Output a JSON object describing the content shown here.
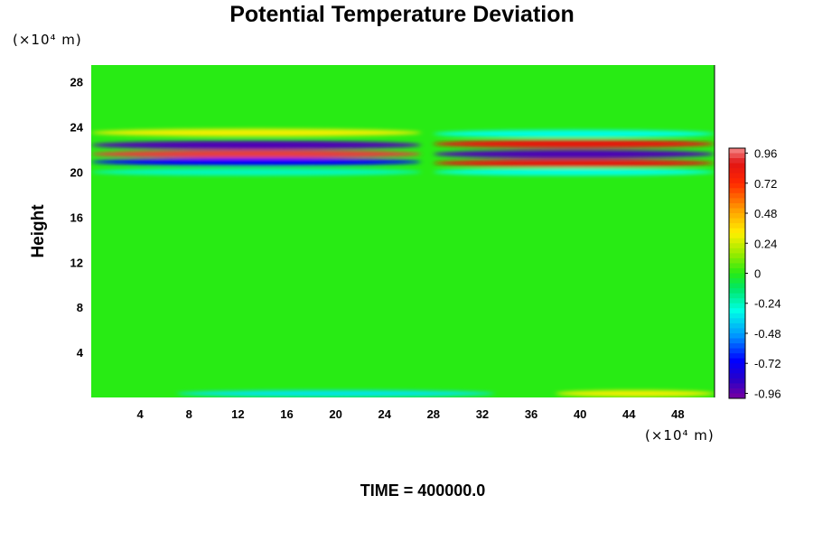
{
  "chart_data": {
    "type": "heatmap",
    "title": "Potential Temperature Deviation",
    "ylabel": "Height",
    "x_unit_label": "(×10⁴ m)",
    "y_unit_label": "(×10⁴ m)",
    "time_label": "TIME = 400000.0",
    "xlim": [
      0,
      51
    ],
    "ylim": [
      0,
      29.5
    ],
    "x_ticks": [
      4,
      8,
      12,
      16,
      20,
      24,
      28,
      32,
      36,
      40,
      44,
      48
    ],
    "y_ticks": [
      4,
      8,
      12,
      16,
      20,
      24,
      28
    ],
    "background_value": 0,
    "colorbar": {
      "min": -1.0,
      "max": 1.0,
      "tick_values": [
        0.96,
        0.72,
        0.48,
        0.24,
        0,
        -0.24,
        -0.48,
        -0.72,
        -0.96
      ],
      "tick_labels": [
        "0.96",
        "0.72",
        "0.48",
        "0.24",
        "0",
        "-0.24",
        "-0.48",
        "-0.72",
        "-0.96"
      ]
    },
    "features": [
      {
        "x_range": [
          0,
          27
        ],
        "y_center": 23.5,
        "y_width": 0.45,
        "value": 0.3
      },
      {
        "x_range": [
          0,
          27
        ],
        "y_center": 22.4,
        "y_width": 0.55,
        "value": -0.92
      },
      {
        "x_range": [
          0,
          27
        ],
        "y_center": 21.6,
        "y_width": 0.5,
        "value": 0.92
      },
      {
        "x_range": [
          0,
          27
        ],
        "y_center": 20.9,
        "y_width": 0.45,
        "value": -0.7
      },
      {
        "x_range": [
          0,
          27
        ],
        "y_center": 20.0,
        "y_width": 0.4,
        "value": -0.25
      },
      {
        "x_range": [
          28,
          51
        ],
        "y_center": 23.4,
        "y_width": 0.45,
        "value": -0.3
      },
      {
        "x_range": [
          28,
          51
        ],
        "y_center": 22.5,
        "y_width": 0.5,
        "value": 0.85
      },
      {
        "x_range": [
          28,
          51
        ],
        "y_center": 21.6,
        "y_width": 0.5,
        "value": -0.92
      },
      {
        "x_range": [
          28,
          51
        ],
        "y_center": 20.8,
        "y_width": 0.45,
        "value": 0.85
      },
      {
        "x_range": [
          28,
          51
        ],
        "y_center": 20.0,
        "y_width": 0.4,
        "value": -0.3
      },
      {
        "x_range": [
          7,
          33
        ],
        "y_center": 0.35,
        "y_width": 0.35,
        "value": -0.35
      },
      {
        "x_range": [
          38,
          51
        ],
        "y_center": 0.35,
        "y_width": 0.35,
        "value": 0.3
      }
    ]
  }
}
